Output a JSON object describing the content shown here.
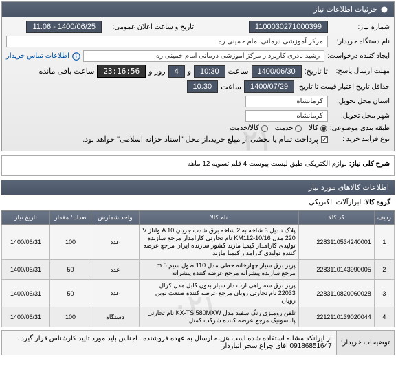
{
  "header": {
    "title": "جزئیات اطلاعات نیاز"
  },
  "form": {
    "need_no_label": "شماره نیاز:",
    "need_no": "1100030271000399",
    "announce_label": "تاریخ و ساعت اعلان عمومی:",
    "announce_value": "1400/06/25 - 11:06",
    "buyer_org_label": "نام دستگاه خریدار:",
    "buyer_org": "مرکز آموزشی درمانی امام خمینی ره",
    "requester_label": "ایجاد کننده درخواست:",
    "requester": "رشید نادری کارپرداز مرکز آموزشی درمانی امام خمینی ره",
    "contact_link": "اطلاعات تماس خریدار",
    "deadline_label": "مهلت ارسال پاسخ:",
    "deadline_to": "تا تاریخ:",
    "deadline_date": "1400/06/30",
    "time_label": "ساعت",
    "deadline_time": "10:30",
    "days_label": "و",
    "days_value": "4",
    "days_suffix": "روز و",
    "timer": "23:16:56",
    "timer_suffix": "ساعت باقی مانده",
    "min_valid_label": "حداقل تاریخ اعتبار قیمت تا تاریخ:",
    "min_valid_date": "1400/07/29",
    "min_valid_time": "10:30",
    "province_label": "استان محل تحویل:",
    "province": "کرمانشاه",
    "city_label": "شهر محل تحویل:",
    "city": "کرمانشاه",
    "subject_cat_label": "طبقه بندی موضوعی:",
    "cat_goods": "کالا",
    "cat_service": "خدمت",
    "cat_goods_service": "کالا/خدمت",
    "process_label": "نوع فرآیند خرید :",
    "process_note": "پرداخت تمام یا بخشی از مبلغ خرید،از محل \"اسناد خزانه اسلامی\" خواهد بود."
  },
  "need_title_label": "شرح کلی نیاز:",
  "need_title": "لوازم الکتریکی طبق لیست پیوست 4 قلم تسویه 12 ماهه",
  "items_section": "اطلاعات کالاهای مورد نیاز",
  "group_label": "گروه کالا:",
  "group_value": "ابزارآلات الکتریکی",
  "columns": {
    "idx": "ردیف",
    "code": "کد کالا",
    "name": "نام کالا",
    "unit": "واحد شمارش",
    "qty": "تعداد / مقدار",
    "date": "تاریخ نیاز"
  },
  "rows": [
    {
      "idx": "1",
      "code": "2283110534240001",
      "name": "پلاگ تبدیل 3 شاخه به 2 شاخه برق شدت جریان A 10 ولتاژ V 220 مدل KM112-10/16 نام تجارتی کارامدار مرجع سازنده تولیدی کارامدار کیمیا مازند کشور سازنده ایران مرجع عرضه کننده تولیدی کارامدار کیمیا مازند",
      "unit": "عدد",
      "qty": "100",
      "date": "1400/06/31"
    },
    {
      "idx": "2",
      "code": "2283110143990005",
      "name": "پریز برق سیار چهارخانه خطی مدل 110 طول سیم m 5 مرجع سازنده پیشرانه مرجع عرضه کننده پیشرانه",
      "unit": "عدد",
      "qty": "50",
      "date": "1400/06/31"
    },
    {
      "idx": "3",
      "code": "2283110820060028",
      "name": "پریز برق سه راهی ارت دار سیار بدون کابل مدل کرال 22033 نام تجارتی رویان مرجع عرضه کننده صنعت نوین رویان",
      "unit": "عدد",
      "qty": "50",
      "date": "1400/06/31"
    },
    {
      "idx": "4",
      "code": "2212110139020044",
      "name": "تلفن رومیزی رنگ سفید مدل KX-TS 580MXW نام تجارتی پاناسونیک مرجع عرضه کننده شرکت کمتل",
      "unit": "دستگاه",
      "qty": "100",
      "date": "1400/06/31"
    }
  ],
  "buyer_notes_label": "توضیحات خریدار:",
  "buyer_notes": "از ایرانکد مشابه استفاده شده است هزینه ارسال به عهده فروشنده . اجناس باید مورد تایید کارشناس قرار گیرد .   09186851647 آقای چراغ سحر انباردار",
  "colors": {
    "header_bg": "#4a5568",
    "header_text": "#ffffff",
    "body_bg": "#f0f0f0",
    "border": "#aaaaaa"
  }
}
